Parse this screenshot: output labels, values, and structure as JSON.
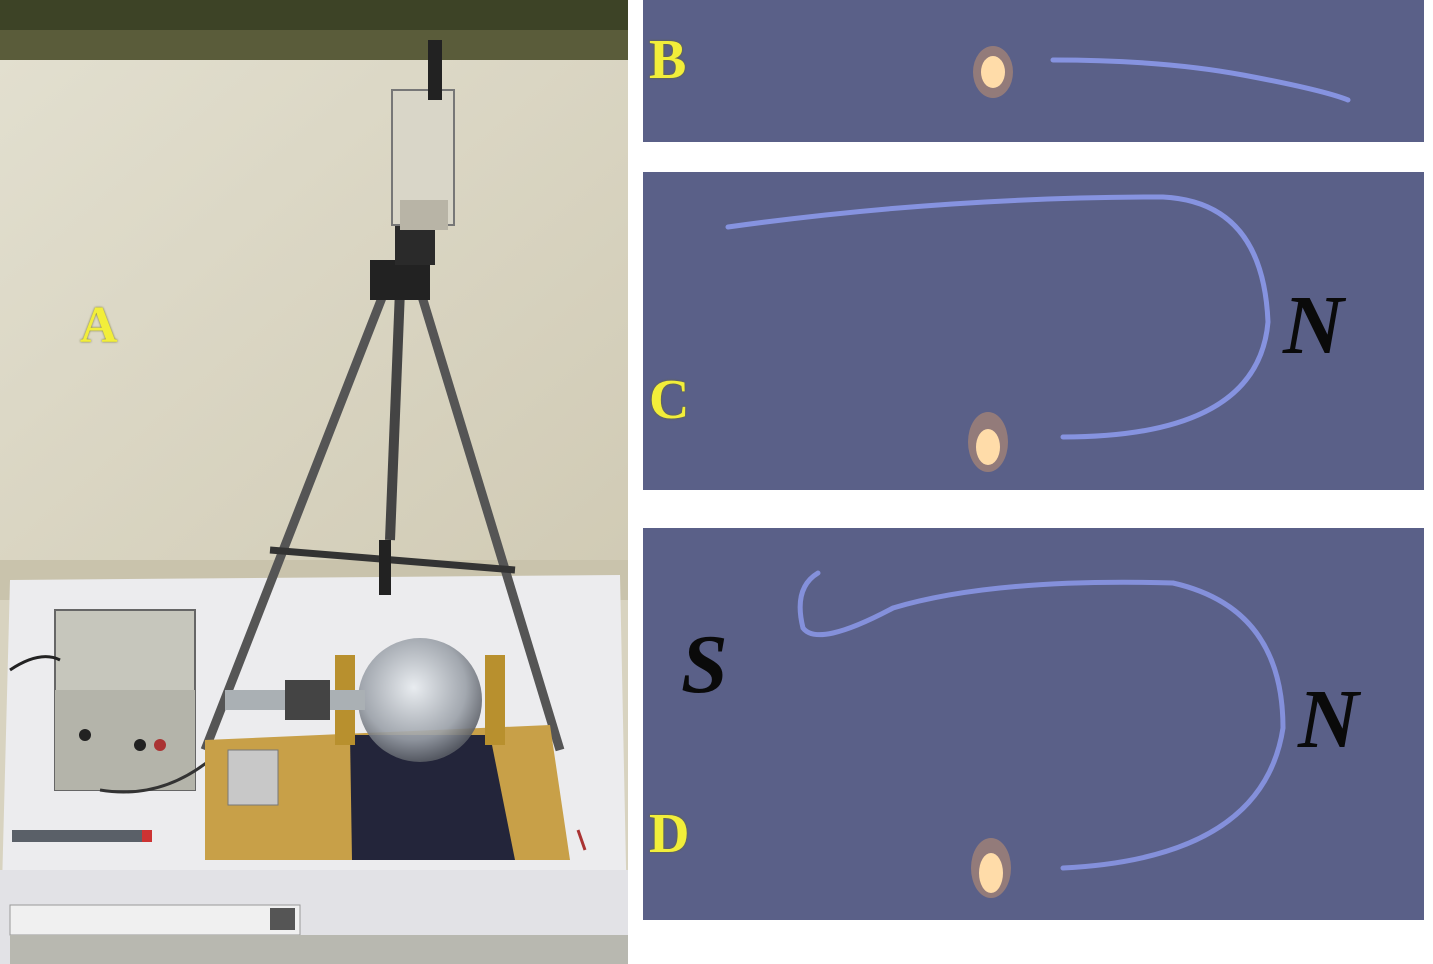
{
  "figure": {
    "panel_a": {
      "label": "A"
    },
    "panel_b": {
      "label": "B"
    },
    "panel_c": {
      "label": "C",
      "pole_right": "N"
    },
    "panel_d": {
      "label": "D",
      "pole_left": "S",
      "pole_right": "N"
    }
  },
  "colors": {
    "panel_bg": "#5a6088",
    "beam": "#8e9cf0",
    "label_yellow": "#f2ee3a",
    "wall": "#dcd8c6",
    "table": "#eeeef0"
  }
}
